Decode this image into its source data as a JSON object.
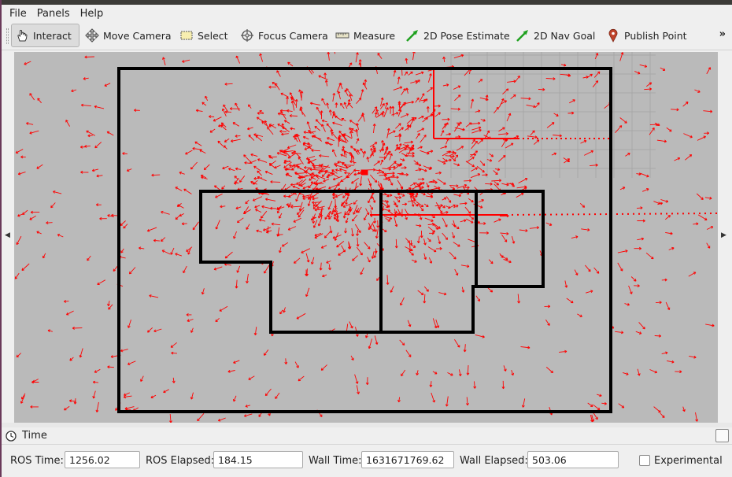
{
  "menu": [
    "File",
    "Panels",
    "Help"
  ],
  "toolbar": {
    "tools": [
      {
        "label": "Interact",
        "icon": "interact-icon"
      },
      {
        "label": "Move Camera",
        "icon": "move-camera-icon"
      },
      {
        "label": "Select",
        "icon": "select-icon"
      },
      {
        "label": "Focus Camera",
        "icon": "focus-camera-icon"
      },
      {
        "label": "Measure",
        "icon": "measure-icon"
      },
      {
        "label": "2D Pose Estimate",
        "icon": "pose-estimate-icon"
      },
      {
        "label": "2D Nav Goal",
        "icon": "nav-goal-icon"
      },
      {
        "label": "Publish Point",
        "icon": "publish-point-icon"
      }
    ],
    "active_tool": "Interact",
    "overflow": "»"
  },
  "viewport": {
    "left_arrow": "◀",
    "right_arrow": "▶"
  },
  "time_panel": {
    "title": "Time",
    "ros_time_label": "ROS Time:",
    "ros_time": "1256.02",
    "ros_elapsed_label": "ROS Elapsed:",
    "ros_elapsed": "184.15",
    "wall_time_label": "Wall Time:",
    "wall_time": "1631671769.62",
    "wall_elapsed_label": "Wall Elapsed:",
    "wall_elapsed": "503.06",
    "experimental_label": "Experimental",
    "experimental_checked": false
  },
  "colors": {
    "particles": "#ff0000",
    "walls": "#000000",
    "viewport_bg": "#bababa",
    "grid": "#a8a8a8"
  }
}
